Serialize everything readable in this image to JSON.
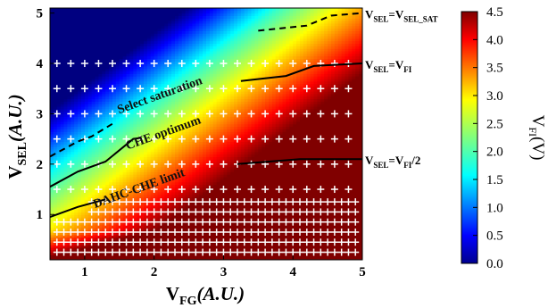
{
  "chart_data": {
    "type": "heatmap",
    "title": "",
    "x_axis": {
      "label_main": "V",
      "label_sub": "FG",
      "label_tail": "(A.U.)",
      "range": [
        0.5,
        5
      ],
      "ticks": [
        1,
        2,
        3,
        4,
        5
      ]
    },
    "y_axis": {
      "label_main": "V",
      "label_sub": "SEL",
      "label_tail": "(A.U.)",
      "range": [
        0.1,
        5.1
      ],
      "ticks": [
        1,
        2,
        3,
        4,
        5
      ]
    },
    "colorbar": {
      "label_main": "V",
      "label_sub": "FI",
      "label_tail": "(V)",
      "range": [
        0,
        4.5
      ],
      "ticks": [
        "0.0",
        "0.5",
        "1.0",
        "1.5",
        "2.0",
        "2.5",
        "3.0",
        "3.5",
        "4.0",
        "4.5"
      ],
      "colormap": "jet"
    },
    "boundary_lines": [
      {
        "name": "V_SEL=V_SEL_SAT",
        "label_main": "V",
        "label_sub1": "SEL",
        "eq": "=V",
        "label_sub2": "SEL_SAT",
        "tail": "",
        "style": "dashed",
        "points": [
          [
            3.5,
            4.65
          ],
          [
            4.2,
            4.75
          ],
          [
            4.55,
            4.95
          ],
          [
            5,
            5.0
          ]
        ]
      },
      {
        "name": "V_SEL=V_FI",
        "label_main": "V",
        "label_sub1": "SEL",
        "eq": "=V",
        "label_sub2": "FI",
        "tail": "",
        "style": "solid",
        "points": [
          [
            3.25,
            3.65
          ],
          [
            3.9,
            3.75
          ],
          [
            4.3,
            3.95
          ],
          [
            5,
            4.0
          ]
        ]
      },
      {
        "name": "V_SEL=V_FI/2",
        "label_main": "V",
        "label_sub1": "SEL",
        "eq": "=V",
        "label_sub2": "FI",
        "tail": "/2",
        "style": "solid",
        "points": [
          [
            3.2,
            2.0
          ],
          [
            4.1,
            2.1
          ],
          [
            5,
            2.1
          ]
        ]
      }
    ],
    "region_lines": [
      {
        "name": "select saturation",
        "style": "dashed",
        "points": [
          [
            0.5,
            2.15
          ],
          [
            0.9,
            2.45
          ],
          [
            1.1,
            2.55
          ],
          [
            1.4,
            2.8
          ]
        ]
      },
      {
        "name": "CHE optimum",
        "style": "solid",
        "points": [
          [
            0.5,
            1.55
          ],
          [
            0.9,
            1.85
          ],
          [
            1.3,
            2.05
          ],
          [
            1.7,
            2.5
          ],
          [
            1.8,
            2.52
          ]
        ]
      },
      {
        "name": "DAHC-CHE limit",
        "style": "solid",
        "points": [
          [
            0.5,
            0.95
          ],
          [
            0.9,
            1.15
          ],
          [
            1.3,
            1.3
          ]
        ]
      }
    ],
    "annotations": [
      {
        "text": "Select saturation",
        "x": 2.1,
        "y": 3.3
      },
      {
        "text": "CHE optimum",
        "x": 2.15,
        "y": 2.55
      },
      {
        "text": "DAHC-CHE limit",
        "x": 1.8,
        "y": 1.45
      }
    ],
    "grid_markers": "white plus markers at sampled bias points",
    "field_model": "V_FI rises with V_FG and falls with V_SEL; max 4.5 V at low V_SEL / high V_FG, min 0 V at high V_SEL / low V_FG"
  }
}
